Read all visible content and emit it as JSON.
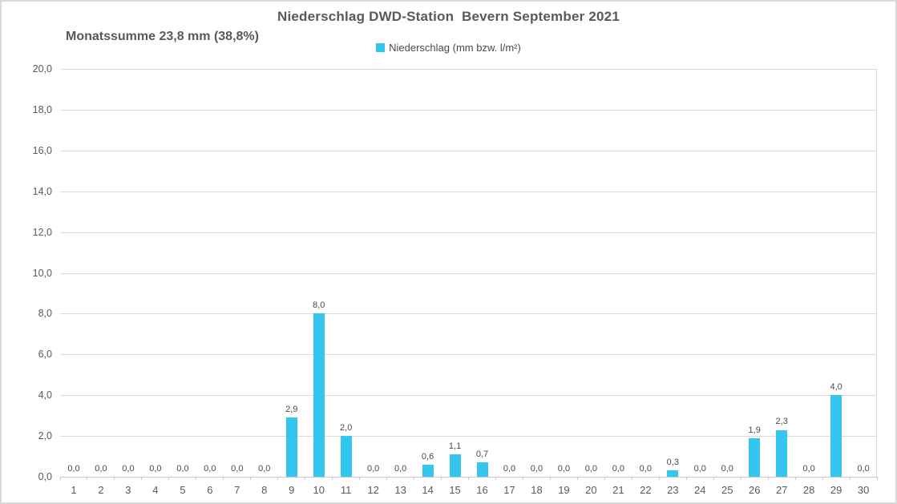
{
  "header": {
    "title": "Niederschlag DWD-Station  Bevern September 2021",
    "subtitle": "Monatssumme 23,8 mm (38,8%)"
  },
  "legend": {
    "label": "Niederschlag (mm bzw. l/m²)",
    "marker_color": "#35c6f0"
  },
  "colors": {
    "bar": "#35c6f0",
    "title_text": "#595959",
    "axis_text": "#595959",
    "value_label_text": "#4a4a4a",
    "grid_line": "#dadada",
    "axis_line": "#c9c9c9",
    "frame_border": "#d9d9d9",
    "background": "#ffffff"
  },
  "chart_data": {
    "type": "bar",
    "title": "Niederschlag DWD-Station  Bevern September 2021",
    "annotation": "Monatssumme 23,8 mm (38,8%)",
    "series_name": "Niederschlag (mm bzw. l/m²)",
    "categories": [
      "1",
      "2",
      "3",
      "4",
      "5",
      "6",
      "7",
      "8",
      "9",
      "10",
      "11",
      "12",
      "13",
      "14",
      "15",
      "16",
      "17",
      "18",
      "19",
      "20",
      "21",
      "22",
      "23",
      "24",
      "25",
      "26",
      "27",
      "28",
      "29",
      "30"
    ],
    "values": [
      0.0,
      0.0,
      0.0,
      0.0,
      0.0,
      0.0,
      0.0,
      0.0,
      2.9,
      8.0,
      2.0,
      0.0,
      0.0,
      0.6,
      1.1,
      0.7,
      0.0,
      0.0,
      0.0,
      0.0,
      0.0,
      0.0,
      0.3,
      0.0,
      0.0,
      1.9,
      2.3,
      0.0,
      4.0,
      0.0
    ],
    "value_labels": [
      "0,0",
      "0,0",
      "0,0",
      "0,0",
      "0,0",
      "0,0",
      "0,0",
      "0,0",
      "2,9",
      "8,0",
      "2,0",
      "0,0",
      "0,0",
      "0,6",
      "1,1",
      "0,7",
      "0,0",
      "0,0",
      "0,0",
      "0,0",
      "0,0",
      "0,0",
      "0,3",
      "0,0",
      "0,0",
      "1,9",
      "2,3",
      "0,0",
      "4,0",
      "0,0"
    ],
    "xlabel": "",
    "ylabel": "",
    "ylim": [
      0,
      20
    ],
    "ytick_step": 2,
    "ytick_labels": [
      "0,0",
      "2,0",
      "4,0",
      "6,0",
      "8,0",
      "10,0",
      "12,0",
      "14,0",
      "16,0",
      "18,0",
      "20,0"
    ],
    "grid": true,
    "legend_position": "top-center",
    "bar_color": "#35c6f0"
  }
}
